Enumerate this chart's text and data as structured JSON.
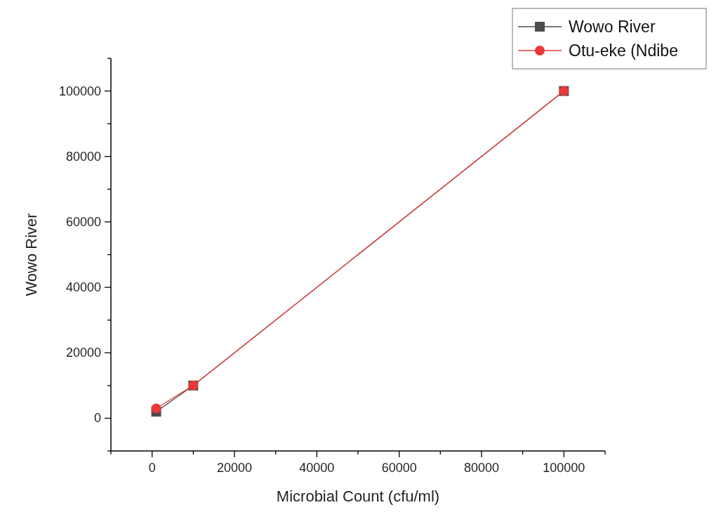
{
  "chart_data": {
    "type": "line",
    "xlabel": "Microbial Count (cfu/ml)",
    "ylabel": "Wowo River",
    "xlim": [
      -10000,
      110000
    ],
    "ylim": [
      -10000,
      110000
    ],
    "xticks": [
      {
        "value": -10000,
        "label": null
      },
      0,
      {
        "value": 10000,
        "label": null
      },
      20000,
      {
        "value": 30000,
        "label": null
      },
      40000,
      {
        "value": 50000,
        "label": null
      },
      60000,
      {
        "value": 70000,
        "label": null
      },
      80000,
      {
        "value": 90000,
        "label": null
      },
      100000,
      {
        "value": 110000,
        "label": null
      }
    ],
    "yticks": [
      {
        "value": -10000,
        "label": null
      },
      0,
      {
        "value": 10000,
        "label": null
      },
      20000,
      {
        "value": 30000,
        "label": null
      },
      40000,
      {
        "value": 50000,
        "label": null
      },
      60000,
      {
        "value": 70000,
        "label": null
      },
      80000,
      {
        "value": 90000,
        "label": null
      },
      100000,
      {
        "value": 110000,
        "label": null
      }
    ],
    "x": [
      1000,
      10000,
      100000
    ],
    "series": [
      {
        "name": "Wowo River",
        "color": "#4d4d4d",
        "marker": "square",
        "values": [
          2000,
          10000,
          100000
        ]
      },
      {
        "name": "Otu-eke (Ndibe",
        "color": "#e83a3a",
        "marker": "circle",
        "values": [
          3000,
          10000,
          100000
        ]
      }
    ],
    "legend": "top right",
    "grid": false
  }
}
